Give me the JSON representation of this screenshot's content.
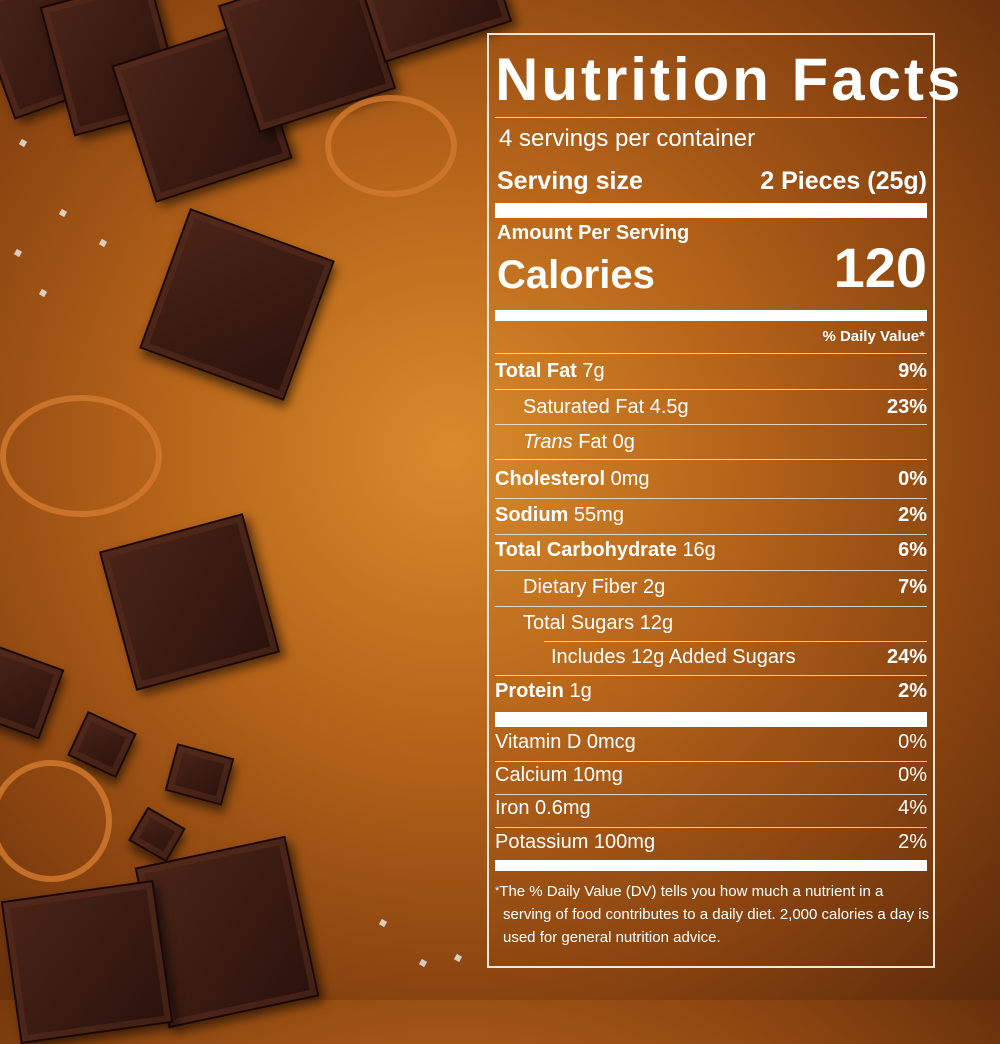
{
  "label": {
    "title": "Nutrition Facts",
    "servings_per_container": "4 servings per container",
    "serving_size_label": "Serving size",
    "serving_size_value": "2 Pieces (25g)",
    "amount_per_serving": "Amount Per Serving",
    "calories_label": "Calories",
    "calories_value": "120",
    "daily_value_header": "% Daily Value*",
    "nutrients": [
      {
        "name": "Total Fat",
        "amount": "7g",
        "dv": "9%"
      },
      {
        "name": "Saturated Fat",
        "amount": "4.5g",
        "dv": "23%"
      },
      {
        "name": "Trans",
        "name_suffix": "Fat",
        "amount": "0g",
        "dv": ""
      },
      {
        "name": "Cholesterol",
        "amount": "0mg",
        "dv": "0%"
      },
      {
        "name": "Sodium",
        "amount": "55mg",
        "dv": "2%"
      },
      {
        "name": "Total Carbohydrate",
        "amount": "16g",
        "dv": "6%"
      },
      {
        "name": "Dietary Fiber",
        "amount": "2g",
        "dv": "7%"
      },
      {
        "name": "Total Sugars",
        "amount": "12g",
        "dv": ""
      },
      {
        "name": "Includes 12g Added Sugars",
        "amount": "",
        "dv": "24%"
      },
      {
        "name": "Protein",
        "amount": "1g",
        "dv": "2%"
      }
    ],
    "vitamins": [
      {
        "text": "Vitamin D 0mcg",
        "dv": "0%"
      },
      {
        "text": "Calcium 10mg",
        "dv": "0%"
      },
      {
        "text": "Iron 0.6mg",
        "dv": "4%"
      },
      {
        "text": "Potassium 100mg",
        "dv": "2%"
      }
    ],
    "footnote_star": "*",
    "footnote": "The % Daily Value (DV) tells you how much a nutrient in a serving of food contributes to a daily diet. 2,000 calories a day is used for general nutrition advice."
  },
  "colors": {
    "background": "#b8661a",
    "chocolate": "#3a1a12",
    "text": "#ffffff"
  }
}
